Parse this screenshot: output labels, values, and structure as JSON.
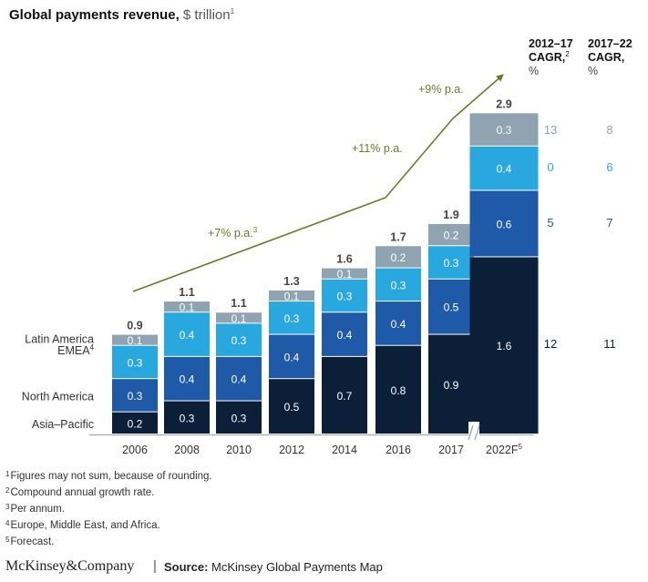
{
  "header": {
    "title": "Global payments revenue,",
    "unit": " $ trillion",
    "title_note": "1"
  },
  "chart_data": {
    "type": "bar",
    "stacked": true,
    "categories": [
      "2006",
      "2008",
      "2010",
      "2012",
      "2014",
      "2016",
      "2017",
      "2022F"
    ],
    "category_notes": [
      "",
      "",
      "",
      "",
      "",
      "",
      "",
      "5"
    ],
    "series": [
      {
        "name": "Asia–Pacific",
        "values": [
          0.2,
          0.3,
          0.3,
          0.5,
          0.7,
          0.8,
          0.9,
          1.6
        ],
        "color": "#0b1f38",
        "label_color": "#ffffff"
      },
      {
        "name": "North America",
        "values": [
          0.3,
          0.4,
          0.4,
          0.4,
          0.4,
          0.4,
          0.5,
          0.6
        ],
        "color": "#1f5aa8",
        "label_color": "#ffffff"
      },
      {
        "name": "EMEA",
        "name_note": "4",
        "values": [
          0.3,
          0.4,
          0.3,
          0.3,
          0.3,
          0.3,
          0.3,
          0.4
        ],
        "color": "#29a8e0",
        "label_color": "#ffffff"
      },
      {
        "name": "Latin America",
        "values": [
          0.1,
          0.1,
          0.1,
          0.1,
          0.1,
          0.2,
          0.2,
          0.3
        ],
        "color": "#8fa3b1",
        "label_color": "#ffffff"
      }
    ],
    "totals": [
      "0.9",
      "1.1",
      "1.1",
      "1.3",
      "1.6",
      "1.7",
      "1.9",
      "2.9"
    ],
    "ylim": [
      0,
      3.0
    ],
    "axis_break_before": "2022F",
    "growth_annotations": [
      {
        "label": "+7% p.a.",
        "note": "3"
      },
      {
        "label": "+11% p.a.",
        "note": ""
      },
      {
        "label": "+9% p.a.",
        "note": ""
      }
    ],
    "cagr_columns": [
      {
        "header": [
          "2012–17",
          "CAGR,",
          "%"
        ],
        "header_note": "2",
        "values": [
          "13",
          "0",
          "5",
          "12"
        ]
      },
      {
        "header": [
          "2017–22",
          "CAGR,",
          "%"
        ],
        "header_note": "",
        "values": [
          "8",
          "6",
          "7",
          "11"
        ]
      }
    ],
    "cagr_value_colors": [
      "#8fa3b1",
      "#29a8e0",
      "#1f5aa8",
      "#0b1f38"
    ],
    "accent_color": "#6b7a2a"
  },
  "footnotes": [
    {
      "num": "1",
      "text": "Figures may not sum, because of rounding."
    },
    {
      "num": "2",
      "text": "Compound annual growth rate."
    },
    {
      "num": "3",
      "text": "Per annum."
    },
    {
      "num": "4",
      "text": "Europe, Middle East, and Africa."
    },
    {
      "num": "5",
      "text": "Forecast."
    }
  ],
  "footer": {
    "brand": "McKinsey&Company",
    "separator": "|",
    "source_label": "Source:",
    "source_text": " McKinsey Global Payments Map"
  }
}
